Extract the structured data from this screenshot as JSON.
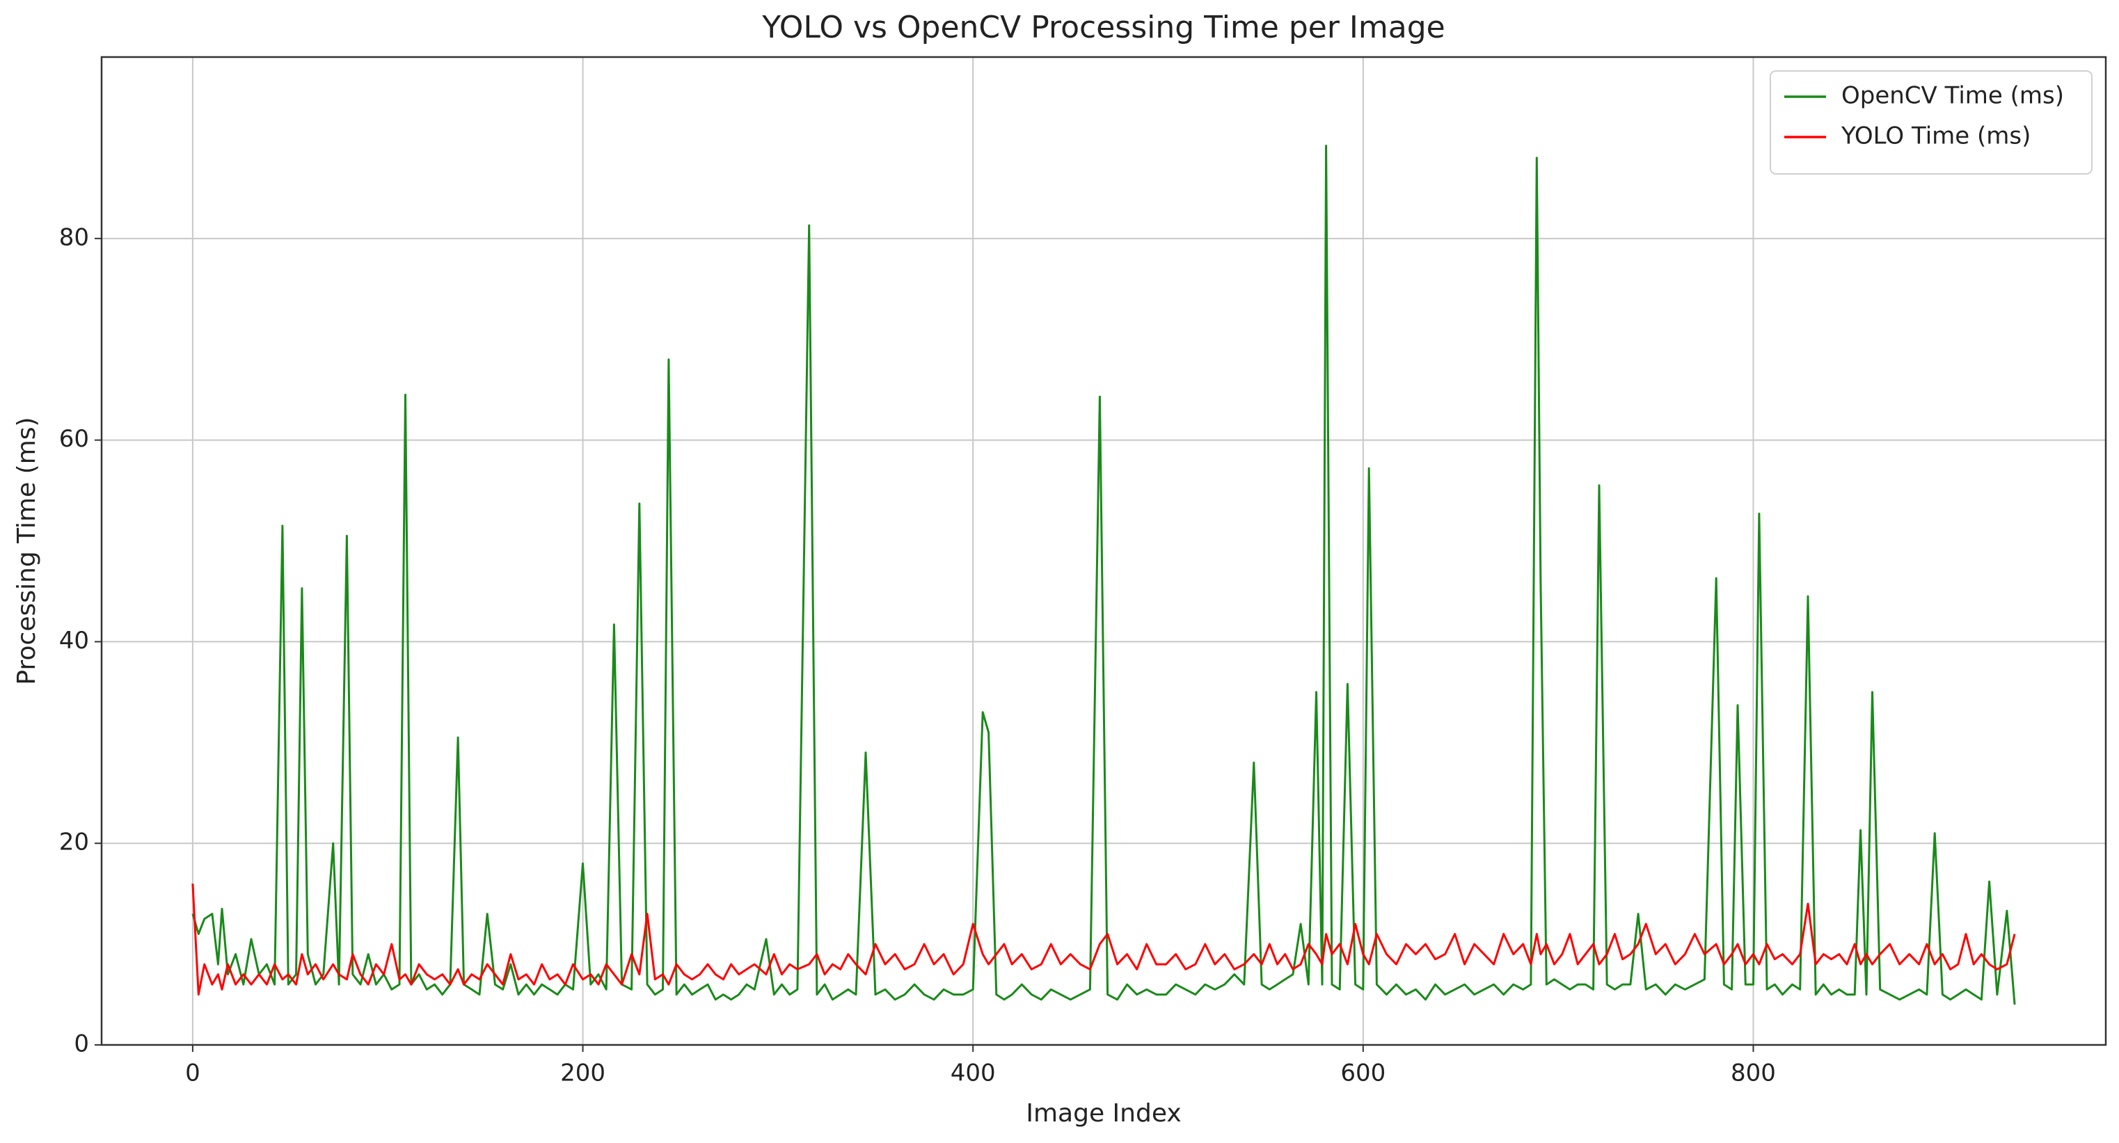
{
  "chart_data": {
    "type": "line",
    "title": "YOLO vs OpenCV Processing Time per Image",
    "xlabel": "Image Index",
    "ylabel": "Processing Time (ms)",
    "x": [
      0,
      3,
      6,
      10,
      13,
      15,
      18,
      22,
      26,
      30,
      34,
      38,
      42,
      46,
      49,
      53,
      56,
      59,
      63,
      67,
      72,
      75,
      79,
      82,
      86,
      90,
      94,
      98,
      102,
      106,
      109,
      112,
      116,
      120,
      124,
      128,
      132,
      136,
      139,
      143,
      147,
      151,
      155,
      159,
      163,
      167,
      171,
      175,
      179,
      183,
      187,
      191,
      195,
      200,
      204,
      208,
      212,
      216,
      220,
      225,
      229,
      233,
      237,
      241,
      244,
      248,
      252,
      256,
      260,
      264,
      268,
      272,
      276,
      280,
      284,
      288,
      294,
      298,
      302,
      306,
      310,
      316,
      320,
      324,
      328,
      332,
      336,
      340,
      345,
      350,
      355,
      360,
      365,
      370,
      375,
      380,
      385,
      390,
      395,
      400,
      405,
      408,
      412,
      416,
      420,
      425,
      430,
      435,
      440,
      445,
      450,
      455,
      460,
      465,
      469,
      474,
      479,
      484,
      489,
      494,
      499,
      504,
      509,
      514,
      519,
      524,
      529,
      534,
      539,
      544,
      548,
      552,
      556,
      560,
      564,
      568,
      572,
      576,
      579,
      581,
      584,
      588,
      592,
      596,
      600,
      603,
      607,
      612,
      617,
      622,
      627,
      632,
      637,
      642,
      647,
      652,
      657,
      662,
      667,
      672,
      677,
      682,
      686,
      689,
      691,
      694,
      698,
      702,
      706,
      710,
      714,
      718,
      721,
      725,
      729,
      733,
      737,
      741,
      745,
      750,
      755,
      760,
      765,
      770,
      775,
      781,
      785,
      789,
      792,
      796,
      800,
      803,
      807,
      811,
      815,
      820,
      824,
      828,
      832,
      836,
      840,
      844,
      848,
      852,
      855,
      858,
      861,
      865,
      870,
      875,
      880,
      885,
      889,
      893,
      897,
      901,
      905,
      909,
      913,
      917,
      921,
      925,
      930,
      934
    ],
    "series": [
      {
        "name": "OpenCV Time (ms)",
        "color": "#1a8a1a",
        "values": [
          13,
          11,
          12.5,
          13,
          8,
          13.5,
          7,
          9,
          6,
          10.5,
          7,
          8,
          6,
          51.5,
          6,
          7,
          45.3,
          9,
          6,
          7,
          20,
          6,
          50.5,
          7,
          6,
          9,
          6,
          7,
          5.5,
          6,
          64.5,
          6,
          7,
          5.5,
          6,
          5,
          6,
          30.5,
          6,
          5.5,
          5,
          13,
          6,
          5.5,
          8,
          5,
          6,
          5,
          6,
          5.5,
          5,
          6,
          5.5,
          18,
          6,
          7,
          5.5,
          41.7,
          6,
          5.5,
          53.7,
          6,
          5,
          5.5,
          68,
          5,
          6,
          5,
          5.5,
          6,
          4.5,
          5,
          4.5,
          5,
          6,
          5.5,
          10.5,
          5,
          6,
          5,
          5.5,
          81.3,
          5,
          6,
          4.5,
          5,
          5.5,
          5,
          29,
          5,
          5.5,
          4.5,
          5,
          6,
          5,
          4.5,
          5.5,
          5,
          5,
          5.5,
          33,
          31,
          5,
          4.5,
          5,
          6,
          5,
          4.5,
          5.5,
          5,
          4.5,
          5,
          5.5,
          64.3,
          5,
          4.5,
          6,
          5,
          5.5,
          5,
          5,
          6,
          5.5,
          5,
          6,
          5.5,
          6,
          7,
          6,
          28,
          6,
          5.5,
          6,
          6.5,
          7,
          12,
          6,
          35,
          6,
          89.2,
          6,
          5.5,
          35.8,
          6,
          5.5,
          57.2,
          6,
          5,
          6,
          5,
          5.5,
          4.5,
          6,
          5,
          5.5,
          6,
          5,
          5.5,
          6,
          5,
          6,
          5.5,
          6,
          88,
          45.8,
          6,
          6.5,
          6,
          5.5,
          6,
          6,
          5.5,
          55.5,
          6,
          5.5,
          6,
          6,
          13,
          5.5,
          6,
          5,
          6,
          5.5,
          6,
          6.5,
          46.3,
          6,
          5.5,
          33.7,
          6,
          6,
          52.7,
          5.5,
          6,
          5,
          6,
          5.5,
          44.5,
          5,
          6,
          5,
          5.5,
          5,
          5,
          21.3,
          5,
          35,
          5.5,
          5,
          4.5,
          5,
          5.5,
          5,
          21,
          5,
          4.5,
          5,
          5.5,
          5,
          4.5,
          16.2,
          5,
          13.3,
          4
        ]
      },
      {
        "name": "YOLO Time (ms)",
        "color": "#ff0000",
        "values": [
          16,
          5,
          8,
          6,
          7,
          5.5,
          8,
          6,
          7,
          6,
          7,
          6,
          8,
          6.5,
          7,
          6,
          9,
          7,
          8,
          6.5,
          8,
          7,
          6.5,
          9,
          7,
          6,
          8,
          7,
          10,
          6.5,
          7,
          6,
          8,
          7,
          6.5,
          7,
          6,
          7.5,
          6,
          7,
          6.5,
          8,
          7,
          6,
          9,
          6.5,
          7,
          6,
          8,
          6.5,
          7,
          6,
          8,
          6.5,
          7,
          6,
          8,
          7,
          6,
          9,
          7,
          13,
          6.5,
          7,
          6,
          8,
          7,
          6.5,
          7,
          8,
          7,
          6.5,
          8,
          7,
          7.5,
          8,
          7,
          9,
          7,
          8,
          7.5,
          8,
          9,
          7,
          8,
          7.5,
          9,
          8,
          7,
          10,
          8,
          9,
          7.5,
          8,
          10,
          8,
          9,
          7,
          8,
          12,
          9,
          8,
          9,
          10,
          8,
          9,
          7.5,
          8,
          10,
          8,
          9,
          8,
          7.5,
          10,
          11,
          8,
          9,
          7.5,
          10,
          8,
          8,
          9,
          7.5,
          8,
          10,
          8,
          9,
          7.5,
          8,
          9,
          8,
          10,
          8,
          9,
          7.5,
          8,
          10,
          9,
          8,
          11,
          9,
          10,
          8,
          12,
          9,
          8,
          11,
          9,
          8,
          10,
          9,
          10,
          8.5,
          9,
          11,
          8,
          10,
          9,
          8,
          11,
          9,
          10,
          8,
          11,
          9,
          10,
          8,
          9,
          11,
          8,
          9,
          10,
          8,
          9,
          11,
          8.5,
          9,
          10,
          12,
          9,
          10,
          8,
          9,
          11,
          9,
          10,
          8,
          9,
          10,
          8,
          9,
          8,
          10,
          8.5,
          9,
          8,
          9,
          14,
          8,
          9,
          8.5,
          9,
          8,
          10,
          8,
          9,
          8,
          9,
          10,
          8,
          9,
          8,
          10,
          8,
          9,
          7.5,
          8,
          11,
          8,
          9,
          8,
          7.5,
          8,
          11
        ]
      }
    ],
    "xlim": [
      -46.7,
      980.7
    ],
    "ylim": [
      0,
      98
    ],
    "xticks": [
      0,
      200,
      400,
      600,
      800
    ],
    "yticks": [
      0,
      20,
      40,
      60,
      80
    ],
    "grid": true,
    "legend": "upper right"
  }
}
